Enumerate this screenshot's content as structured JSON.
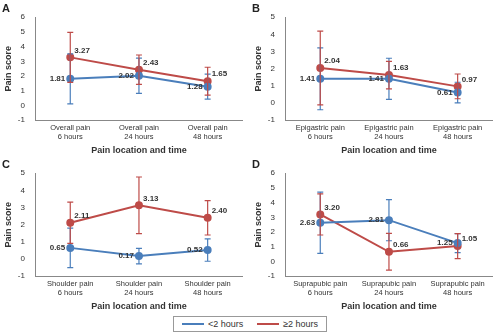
{
  "chart_data": [
    {
      "type": "line",
      "title": "A",
      "x_label": "Pain location and time",
      "y_label": "Pain score",
      "categories": [
        "Overall pain 6 hours",
        "Overall pain 24 hours",
        "Overall pain 48 hours"
      ],
      "series": [
        {
          "name": "<2 hours",
          "color": "#4a7ebb",
          "values": [
            1.81,
            2.02,
            1.28
          ],
          "value_labels": [
            "1.81",
            "2.02",
            "1.28"
          ],
          "errors": [
            1.7,
            1.2,
            0.85
          ]
        },
        {
          "name": "≥2 hours",
          "color": "#be4b48",
          "values": [
            3.27,
            2.43,
            1.65
          ],
          "value_labels": [
            "3.27",
            "2.43",
            "1.65"
          ],
          "errors": [
            1.7,
            1.0,
            0.95
          ]
        }
      ],
      "ylim": [
        -1,
        6
      ],
      "yticks": [
        -1,
        0,
        1,
        2,
        3,
        4,
        5,
        6
      ],
      "grid": false,
      "data_labels": true,
      "legend": "bottom",
      "marker": "circle"
    },
    {
      "type": "line",
      "title": "B",
      "x_label": "Pain location and time",
      "y_label": "Pain score",
      "categories": [
        "Epigastric pain 6 hours",
        "Epigastric pain 24 hours",
        "Epigastric pain 48 hours"
      ],
      "series": [
        {
          "name": "<2 hours",
          "color": "#4a7ebb",
          "values": [
            1.41,
            1.41,
            0.61
          ],
          "value_labels": [
            "1.41",
            "1.41",
            "0.61"
          ],
          "errors": [
            1.8,
            1.2,
            0.6
          ]
        },
        {
          "name": "≥2 hours",
          "color": "#be4b48",
          "values": [
            2.04,
            1.63,
            0.97
          ],
          "value_labels": [
            "2.04",
            "1.63",
            "0.97"
          ],
          "errors": [
            2.15,
            0.8,
            0.72
          ]
        }
      ],
      "ylim": [
        -1,
        5
      ],
      "yticks": [
        -1,
        0,
        1,
        2,
        3,
        4,
        5
      ],
      "grid": false,
      "data_labels": true,
      "legend": "bottom",
      "marker": "circle"
    },
    {
      "type": "line",
      "title": "C",
      "x_label": "Pain location and time",
      "y_label": "Pain score",
      "categories": [
        "Shoulder pain 6 hours",
        "Shoulder pain 24 hours",
        "Shoulder pain 48 hours"
      ],
      "series": [
        {
          "name": "<2 hours",
          "color": "#4a7ebb",
          "values": [
            0.65,
            0.17,
            0.52
          ],
          "value_labels": [
            "0.65",
            "0.17",
            "0.52"
          ],
          "errors": [
            1.15,
            0.45,
            0.65
          ]
        },
        {
          "name": "≥2 hours",
          "color": "#be4b48",
          "values": [
            2.11,
            3.13,
            2.4
          ],
          "value_labels": [
            "2.11",
            "3.13",
            "2.40"
          ],
          "errors": [
            1.2,
            1.65,
            1.0
          ]
        }
      ],
      "ylim": [
        -1,
        5
      ],
      "yticks": [
        -1,
        0,
        1,
        2,
        3,
        4,
        5
      ],
      "grid": false,
      "data_labels": true,
      "legend": "bottom",
      "marker": "circle"
    },
    {
      "type": "line",
      "title": "D",
      "x_label": "Pain location and time",
      "y_label": "Pain score",
      "categories": [
        "Suprapubic pain 6 hours",
        "Suprapubic pain 24 hours",
        "Suprapubic pain 48 hours"
      ],
      "series": [
        {
          "name": "<2 hours",
          "color": "#4a7ebb",
          "values": [
            2.63,
            2.81,
            1.25
          ],
          "value_labels": [
            "2.63",
            "2.81",
            "1.25"
          ],
          "errors": [
            2.08,
            1.4,
            0.65
          ]
        },
        {
          "name": "≥2 hours",
          "color": "#be4b48",
          "values": [
            3.2,
            0.66,
            1.05
          ],
          "value_labels": [
            "3.20",
            "0.66",
            "1.05"
          ],
          "errors": [
            1.4,
            1.25,
            0.85
          ]
        }
      ],
      "ylim": [
        -1,
        6
      ],
      "yticks": [
        -1,
        0,
        1,
        2,
        3,
        4,
        5,
        6
      ],
      "grid": false,
      "data_labels": true,
      "legend": "bottom",
      "marker": "circle"
    }
  ]
}
